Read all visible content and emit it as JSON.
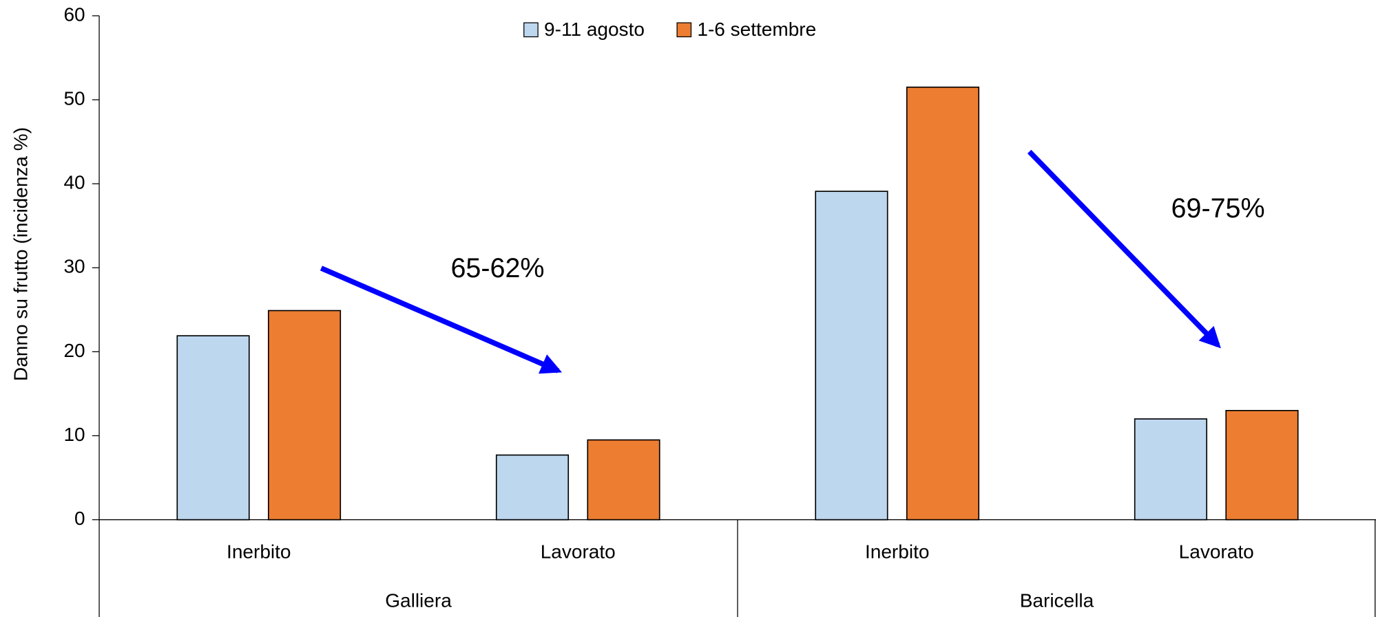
{
  "chart_data": {
    "type": "bar",
    "y_label": "Danno su frutto (incidenza %)",
    "categories": [
      "Inerbito",
      "Lavorato",
      "Inerbito",
      "Lavorato"
    ],
    "groups": [
      "Galliera",
      "Baricella"
    ],
    "series": [
      {
        "name": "9-11 agosto",
        "color": "#bdd7ee",
        "values": [
          21.9,
          7.7,
          39.1,
          12.0
        ]
      },
      {
        "name": "1-6 settembre",
        "color": "#ed7d31",
        "values": [
          24.9,
          9.5,
          51.5,
          13.0
        ]
      }
    ],
    "ylim": [
      0,
      60
    ],
    "yticks": [
      0,
      10,
      20,
      30,
      40,
      50,
      60
    ],
    "annotations": [
      "65-62%",
      "69-75%"
    ],
    "legend": "top"
  }
}
